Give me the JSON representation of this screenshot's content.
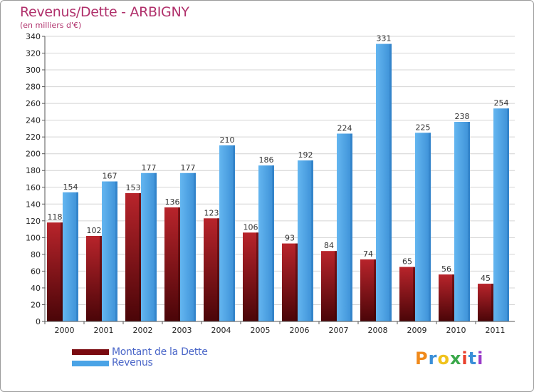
{
  "chart_data": {
    "type": "bar",
    "title": "Revenus/Dette - ARBIGNY",
    "subtitle": "(en milliers d'€)",
    "categories": [
      "2000",
      "2001",
      "2002",
      "2003",
      "2004",
      "2005",
      "2006",
      "2007",
      "2008",
      "2009",
      "2010",
      "2011"
    ],
    "series": [
      {
        "name": "Montant de la Dette",
        "color": "#7a0a10",
        "values": [
          118,
          102,
          153,
          136,
          123,
          106,
          93,
          84,
          74,
          65,
          56,
          45
        ]
      },
      {
        "name": "Revenus",
        "color": "#4aa3e6",
        "values": [
          154,
          167,
          177,
          177,
          210,
          186,
          192,
          224,
          331,
          225,
          238,
          254
        ]
      }
    ],
    "ylim": [
      0,
      340
    ],
    "yticks": [
      0,
      20,
      40,
      60,
      80,
      100,
      120,
      140,
      160,
      180,
      200,
      220,
      240,
      260,
      280,
      300,
      320,
      340
    ],
    "grid": true,
    "legend_position": "bottom-left"
  },
  "logo": {
    "letters": [
      "P",
      "r",
      "o",
      "x",
      "i",
      "t",
      "i"
    ],
    "colors": [
      "#f08a1c",
      "#3a8fd8",
      "#f0c21c",
      "#3aa84a",
      "#e8402c",
      "#3a8fd8",
      "#9a3ac8"
    ]
  }
}
